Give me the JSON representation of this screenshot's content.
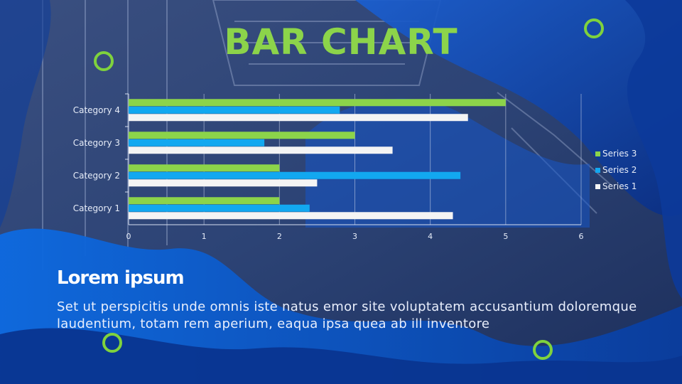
{
  "slide": {
    "title": "BAR CHART",
    "subtitle": "Lorem ipsum",
    "body": "Set ut perspicitis unde omnis iste natus emor site voluptatem accusantium doloremque laudentium, totam rem aperium, eaqua ipsa quea ab ill inventore"
  },
  "colors": {
    "accent_green": "#8cd44a",
    "series3": "#8cd44a",
    "series2": "#12a8f0",
    "series1": "#f4f4f4",
    "background": "#0d2a66"
  },
  "chart_data": {
    "type": "bar",
    "orientation": "horizontal",
    "categories": [
      "Category 1",
      "Category 2",
      "Category 3",
      "Category 4"
    ],
    "series": [
      {
        "name": "Series 1",
        "values": [
          4.3,
          2.5,
          3.5,
          4.5
        ]
      },
      {
        "name": "Series 2",
        "values": [
          2.4,
          4.4,
          1.8,
          2.8
        ]
      },
      {
        "name": "Series 3",
        "values": [
          2,
          2,
          3,
          5
        ]
      }
    ],
    "xlim": [
      0,
      6
    ],
    "xticks": [
      "0",
      "1",
      "2",
      "3",
      "4",
      "5",
      "6"
    ],
    "grid": true,
    "legend": "right"
  }
}
